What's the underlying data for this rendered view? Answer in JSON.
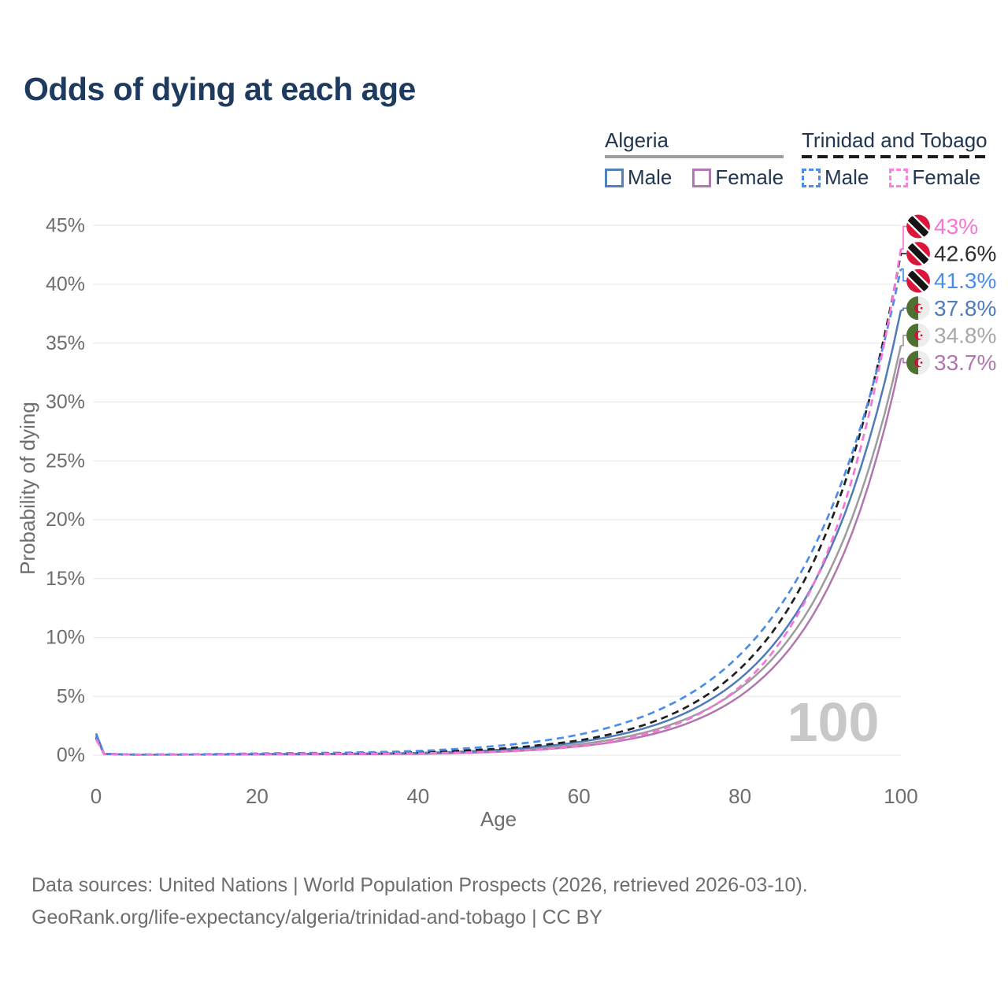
{
  "title": "Odds of dying at each age",
  "legend": {
    "groups": [
      {
        "label": "Algeria",
        "line_style": "solid",
        "underline_color": "#9e9e9e",
        "items": [
          {
            "label": "Male",
            "color": "#5181ba"
          },
          {
            "label": "Female",
            "color": "#b278b0"
          }
        ]
      },
      {
        "label": "Trinidad and Tobago",
        "line_style": "dashed",
        "underline_color": "#1c1c1c",
        "items": [
          {
            "label": "Male",
            "color": "#4a8de9"
          },
          {
            "label": "Female",
            "color": "#f982de"
          }
        ]
      }
    ]
  },
  "chart_data": {
    "type": "line",
    "title": "Odds of dying at each age",
    "xlabel": "Age",
    "ylabel": "Probability of dying",
    "xlim": [
      0,
      100
    ],
    "ylim": [
      0,
      45
    ],
    "x_ticks": [
      0,
      20,
      40,
      60,
      80,
      100
    ],
    "y_ticks": [
      0,
      5,
      10,
      15,
      20,
      25,
      30,
      35,
      40,
      45
    ],
    "y_tick_suffix": "%",
    "grid": "horizontal-only",
    "hover_age_label": "100",
    "x": [
      0,
      1,
      5,
      10,
      15,
      20,
      25,
      30,
      35,
      40,
      45,
      50,
      55,
      60,
      65,
      70,
      75,
      80,
      85,
      90,
      95,
      100
    ],
    "series": [
      {
        "id": "algeria_both",
        "name": "Algeria — Both sexes",
        "country": "Algeria",
        "sex": "Both",
        "color": "#9c9c9c",
        "label_color": "#a8a8a8",
        "dashed": false,
        "flag": "dz",
        "end_label": "34.8%",
        "values": [
          1.7,
          0.11,
          0.05,
          0.05,
          0.06,
          0.08,
          0.09,
          0.1,
          0.12,
          0.15,
          0.23,
          0.37,
          0.58,
          0.92,
          1.45,
          2.28,
          3.59,
          5.67,
          8.93,
          14.1,
          22.2,
          34.8
        ]
      },
      {
        "id": "algeria_female",
        "name": "Algeria — Female",
        "country": "Algeria",
        "sex": "Female",
        "color": "#b077ae",
        "label_color": "#b077ae",
        "dashed": false,
        "flag": "dz",
        "end_label": "33.7%",
        "values": [
          1.55,
          0.1,
          0.04,
          0.04,
          0.05,
          0.06,
          0.07,
          0.08,
          0.09,
          0.11,
          0.18,
          0.29,
          0.47,
          0.75,
          1.21,
          1.94,
          3.13,
          5.02,
          8.08,
          13.0,
          20.9,
          33.7
        ]
      },
      {
        "id": "algeria_male",
        "name": "Algeria — Male",
        "country": "Algeria",
        "sex": "Male",
        "color": "#4f7cb8",
        "label_color": "#4f7cb8",
        "dashed": false,
        "flag": "dz",
        "end_label": "37.8%",
        "values": [
          1.85,
          0.12,
          0.05,
          0.05,
          0.07,
          0.1,
          0.11,
          0.13,
          0.15,
          0.19,
          0.3,
          0.46,
          0.72,
          1.12,
          1.74,
          2.69,
          4.19,
          6.5,
          10.1,
          15.7,
          24.4,
          37.8
        ]
      },
      {
        "id": "tt_both",
        "name": "Trinidad and Tobago — Both sexes",
        "country": "Trinidad and Tobago",
        "sex": "Both",
        "color": "#1f1f1f",
        "label_color": "#2e2e2e",
        "dashed": true,
        "flag": "tt",
        "end_label": "42.6%",
        "values": [
          1.5,
          0.11,
          0.05,
          0.06,
          0.08,
          0.11,
          0.13,
          0.16,
          0.19,
          0.26,
          0.38,
          0.55,
          0.84,
          1.26,
          1.96,
          3.04,
          4.72,
          7.33,
          11.38,
          17.7,
          27.5,
          42.6
        ]
      },
      {
        "id": "tt_male",
        "name": "Trinidad and Tobago — Male",
        "country": "Trinidad and Tobago",
        "sex": "Male",
        "color": "#4a8de9",
        "label_color": "#4a8de9",
        "dashed": true,
        "flag": "tt",
        "end_label": "41.3%",
        "values": [
          1.6,
          0.12,
          0.06,
          0.07,
          0.1,
          0.15,
          0.18,
          0.21,
          0.27,
          0.36,
          0.54,
          0.8,
          1.18,
          1.75,
          2.6,
          3.87,
          5.74,
          8.53,
          12.66,
          18.8,
          27.9,
          41.3
        ]
      },
      {
        "id": "tt_female",
        "name": "Trinidad and Tobago — Female",
        "country": "Trinidad and Tobago",
        "sex": "Female",
        "color": "#f875d7",
        "label_color": "#f875d7",
        "dashed": true,
        "flag": "tt",
        "end_label": "43%",
        "values": [
          1.35,
          0.1,
          0.04,
          0.05,
          0.06,
          0.08,
          0.09,
          0.11,
          0.13,
          0.16,
          0.22,
          0.31,
          0.5,
          0.79,
          1.3,
          2.14,
          3.53,
          5.82,
          9.6,
          15.8,
          26.1,
          43.0
        ]
      }
    ]
  },
  "footer": {
    "line1": "Data sources: United Nations | World Population Prospects (2026, retrieved 2026-03-10).",
    "line2": "GeoRank.org/life-expectancy/algeria/trinidad-and-tobago | CC BY"
  }
}
